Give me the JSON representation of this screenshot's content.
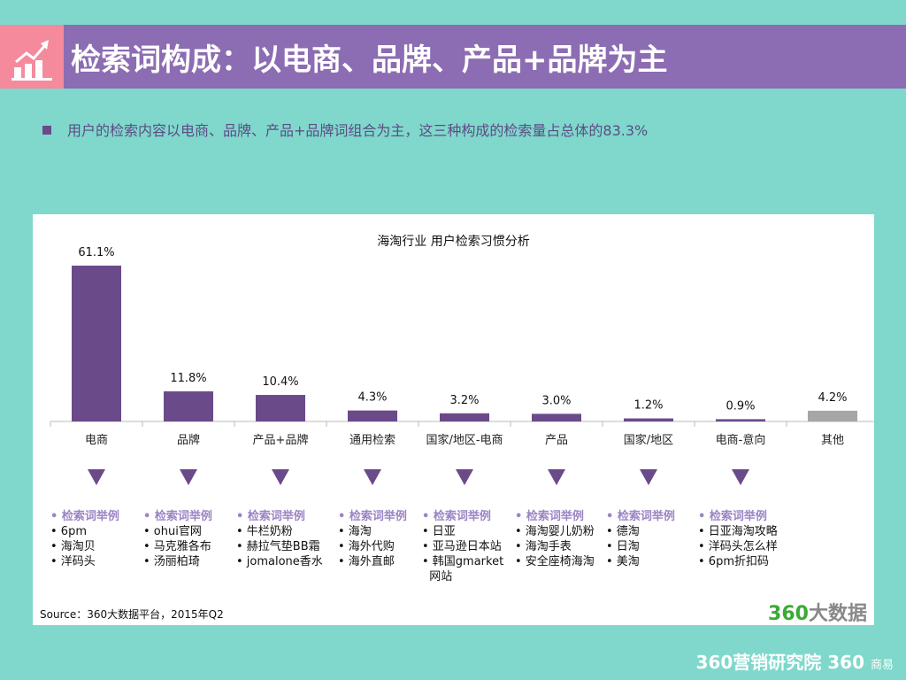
{
  "header": {
    "title": "检索词构成：以电商、品牌、产品+品牌为主",
    "icon": "rising-chart-icon"
  },
  "bullet": "用户的检索内容以电商、品牌、产品+品牌词组合为主，这三种构成的检索量占总体的83.3%",
  "chart_data": {
    "type": "bar",
    "title": "海淘行业 用户检索习惯分析",
    "categories": [
      "电商",
      "品牌",
      "产品+品牌",
      "通用检索",
      "国家/地区-电商",
      "产品",
      "国家/地区",
      "电商-意向",
      "其他"
    ],
    "values": [
      61.1,
      11.8,
      10.4,
      4.3,
      3.2,
      3.0,
      1.2,
      0.9,
      4.2
    ],
    "labels": [
      "61.1%",
      "11.8%",
      "10.4%",
      "4.3%",
      "3.2%",
      "3.0%",
      "1.2%",
      "0.9%",
      "4.2%"
    ],
    "colors": [
      "#6b4a8a",
      "#6b4a8a",
      "#6b4a8a",
      "#6b4a8a",
      "#6b4a8a",
      "#6b4a8a",
      "#6b4a8a",
      "#6b4a8a",
      "#a6a6a6"
    ],
    "ylim": [
      0,
      61.1
    ]
  },
  "examples": [
    {
      "heading": "• 检索词举例",
      "items": [
        "• 6pm",
        "• 海淘贝",
        "• 洋码头"
      ]
    },
    {
      "heading": "• 检索词举例",
      "items": [
        "• ohui官网",
        "• 马克雅各布",
        "• 汤丽柏琦"
      ]
    },
    {
      "heading": "• 检索词举例",
      "items": [
        "• 牛栏奶粉",
        "• 赫拉气垫BB霜",
        "• jomalone香水"
      ]
    },
    {
      "heading": "• 检索词举例",
      "items": [
        "• 海淘",
        "• 海外代购",
        "• 海外直邮"
      ]
    },
    {
      "heading": "• 检索词举例",
      "items": [
        "• 日亚",
        "• 亚马逊日本站",
        "• 韩国gmarket",
        "  网站"
      ]
    },
    {
      "heading": "• 检索词举例",
      "items": [
        "• 海淘婴儿奶粉",
        "• 海淘手表",
        "• 安全座椅海淘"
      ]
    },
    {
      "heading": "• 检索词举例",
      "items": [
        "• 德淘",
        "• 日淘",
        "• 美淘"
      ]
    },
    {
      "heading": "• 检索词举例",
      "items": [
        "• 日亚海淘攻略",
        "• 洋码头怎么样",
        "• 6pm折扣码"
      ]
    }
  ],
  "source": "Source：360大数据平台，2015年Q2",
  "watermark": {
    "a": "360",
    "b": "大数据"
  },
  "footer": {
    "a": "360营销研究院",
    "b": "360",
    "c": "商易"
  }
}
